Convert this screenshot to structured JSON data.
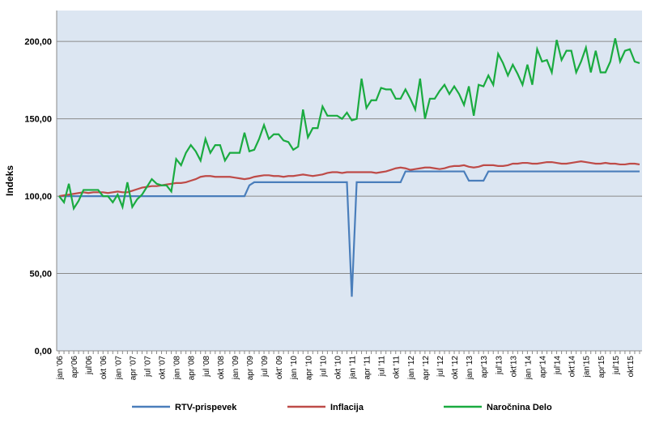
{
  "chart_data": {
    "type": "line",
    "y_label": "Indeks",
    "categories": [
      "jan '06",
      null,
      null,
      "apr'06",
      null,
      null,
      "jul'06",
      null,
      null,
      "okt '06",
      null,
      null,
      "jan '07",
      null,
      null,
      "apr '07",
      null,
      null,
      "jul '07",
      null,
      null,
      "okt '07",
      null,
      null,
      "jan '08",
      null,
      null,
      "apr '08",
      null,
      null,
      "jul '08",
      null,
      null,
      "okt '08",
      null,
      null,
      "jan '09",
      null,
      null,
      "apr '09",
      null,
      null,
      "jul '09",
      null,
      null,
      "okt' 09",
      null,
      null,
      "jan '10",
      null,
      null,
      "apr '10",
      null,
      null,
      "jul '10",
      null,
      null,
      "okt '10",
      null,
      null,
      "jan '11",
      null,
      null,
      "apr '11",
      null,
      null,
      "jul '11",
      null,
      null,
      "okt '11",
      null,
      null,
      "jan '12",
      null,
      null,
      "apr '12",
      null,
      null,
      "jul '12",
      null,
      null,
      "okt '12",
      null,
      null,
      "jan '13",
      null,
      null,
      "apr'13",
      null,
      null,
      "jul'13",
      null,
      null,
      "okt'13",
      null,
      null,
      "jan '14",
      null,
      null,
      "apr'14",
      null,
      null,
      "jul'14",
      null,
      null,
      "okt'14",
      null,
      null,
      "jan'15",
      null,
      null,
      "apr'15",
      null,
      null,
      "jul'15",
      null,
      null,
      "okt'15",
      null,
      null
    ],
    "series": [
      {
        "name": "RTV-prispevek",
        "color": "#4a7ebb",
        "values": [
          100,
          100,
          100,
          100,
          100,
          100,
          100,
          100,
          100,
          100,
          100,
          100,
          100,
          100,
          100,
          100,
          100,
          100,
          100,
          100,
          100,
          100,
          100,
          100,
          100,
          100,
          100,
          100,
          100,
          100,
          100,
          100,
          100,
          100,
          100,
          100,
          100,
          100,
          100,
          107,
          109,
          109,
          109,
          109,
          109,
          109,
          109,
          109,
          109,
          109,
          109,
          109,
          109,
          109,
          109,
          109,
          109,
          109,
          109,
          109,
          35,
          109,
          109,
          109,
          109,
          109,
          109,
          109,
          109,
          109,
          109,
          116,
          116,
          116,
          116,
          116,
          116,
          116,
          116,
          116,
          116,
          116,
          116,
          116,
          110,
          110,
          110,
          110,
          116,
          116,
          116,
          116,
          116,
          116,
          116,
          116,
          116,
          116,
          116,
          116,
          116,
          116,
          116,
          116,
          116,
          116,
          116,
          116,
          116,
          116,
          116,
          116,
          116,
          116,
          116,
          116,
          116,
          116,
          116,
          116
        ]
      },
      {
        "name": "Inflacija",
        "color": "#be4b48",
        "values": [
          100,
          100.5,
          101,
          101.5,
          102,
          102.5,
          102,
          102.5,
          102.5,
          102.5,
          102,
          102.5,
          103,
          102.5,
          102.5,
          103.5,
          104.5,
          105.5,
          106,
          106.5,
          106.5,
          107,
          107.5,
          108,
          108.5,
          108.5,
          109,
          110,
          111,
          112.5,
          113,
          113,
          112.5,
          112.5,
          112.5,
          112.5,
          112,
          111.5,
          111,
          111.5,
          112.5,
          113,
          113.5,
          113.5,
          113,
          113,
          112.5,
          113,
          113,
          113.5,
          114,
          113.5,
          113,
          113.5,
          114,
          115,
          115.5,
          115.5,
          115,
          115.5,
          115.5,
          115.5,
          115.5,
          115.5,
          115.5,
          115,
          115.5,
          116,
          117,
          118,
          118.5,
          118,
          117,
          117.5,
          118,
          118.5,
          118.5,
          118,
          117.5,
          118,
          119,
          119.5,
          119.5,
          120,
          119,
          118.5,
          119,
          120,
          120,
          120,
          119.5,
          119.5,
          120,
          121,
          121,
          121.5,
          121.5,
          121,
          121,
          121.5,
          122,
          122,
          121.5,
          121,
          121,
          121.5,
          122,
          122.5,
          122,
          121.5,
          121,
          121,
          121.5,
          121,
          121,
          120.5,
          120.5,
          121,
          121,
          120.5
        ]
      },
      {
        "name": "Naročnina Delo",
        "color": "#1aab40",
        "values": [
          100,
          96,
          108,
          92,
          97,
          104,
          104,
          104,
          104,
          100,
          100,
          96,
          101,
          93,
          109,
          93,
          98,
          101,
          106,
          111,
          108,
          107,
          107,
          103,
          124,
          120,
          128,
          133,
          129,
          123,
          137,
          128,
          133,
          133,
          123,
          128,
          128,
          128,
          141,
          129,
          130,
          137,
          146,
          137,
          140,
          140,
          136,
          135,
          130,
          132,
          156,
          138,
          144,
          144,
          158,
          152,
          152,
          152,
          150,
          154,
          149,
          150,
          176,
          157,
          162,
          162,
          170,
          169,
          169,
          163,
          163,
          169,
          163,
          156,
          176,
          150,
          163,
          163,
          168,
          172,
          166,
          171,
          166,
          159,
          171,
          152,
          172,
          171,
          178,
          172,
          192,
          186,
          178,
          185,
          179,
          172,
          185,
          172,
          195,
          187,
          188,
          180,
          201,
          188,
          194,
          194,
          180,
          187,
          196,
          180,
          194,
          180,
          180,
          187,
          202,
          187,
          194,
          195,
          187,
          186
        ]
      }
    ],
    "ylim": [
      0,
      220
    ],
    "yticks": [
      {
        "value": 0,
        "label": "0,00"
      },
      {
        "value": 50,
        "label": "50,00"
      },
      {
        "value": 100,
        "label": "100,00"
      },
      {
        "value": 150,
        "label": "150,00"
      },
      {
        "value": 200,
        "label": "200,00"
      }
    ],
    "grid": true
  }
}
